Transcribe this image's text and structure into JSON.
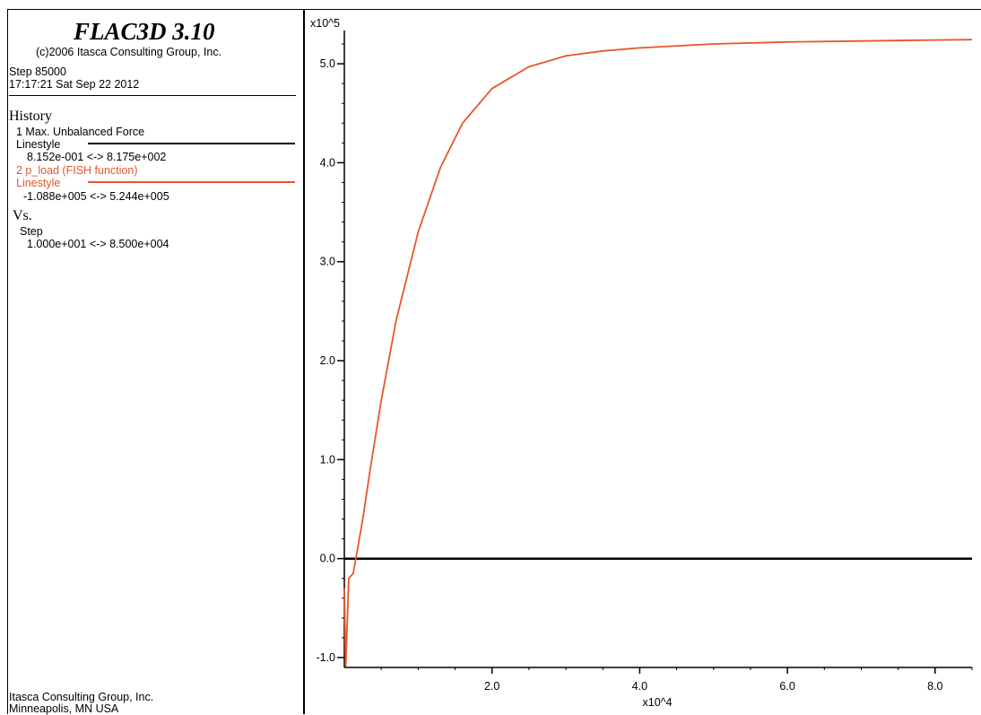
{
  "header": {
    "app_title": "FLAC3D 3.10",
    "copyright": "(c)2006 Itasca Consulting Group, Inc.",
    "step": "Step 85000",
    "datetime": "17:17:21 Sat Sep 22 2012"
  },
  "legend": {
    "history_title": "History",
    "items": [
      {
        "name": "1 Max. Unbalanced Force",
        "linestyle_label": "Linestyle",
        "range": "8.152e-001 <-> 8.175e+002",
        "color": "#000000"
      },
      {
        "name": "2 p_load (FISH function)",
        "linestyle_label": "Linestyle",
        "range": "-1.088e+005 <-> 5.244e+005",
        "color": "#e8562a"
      }
    ],
    "vs_title": "Vs.",
    "vs_name": "Step",
    "vs_range": "1.000e+001 <-> 8.500e+004"
  },
  "footer": {
    "line1": "Itasca Consulting Group, Inc.",
    "line2": "Minneapolis, MN  USA"
  },
  "chart_data": {
    "type": "line",
    "x_multiplier_label": "x10^4",
    "y_multiplier_label": "x10^5",
    "xlim": [
      0,
      8.5
    ],
    "ylim": [
      -1.1,
      5.3
    ],
    "x_ticks": [
      2,
      4,
      6,
      8
    ],
    "x_tick_labels": [
      "2.0",
      "4.0",
      "6.0",
      "8.0"
    ],
    "y_ticks": [
      -1,
      0,
      1,
      2,
      3,
      4,
      5
    ],
    "y_tick_labels": [
      "-1.0",
      "0.0",
      "1.0",
      "2.0",
      "3.0",
      "4.0",
      "5.0"
    ],
    "series": [
      {
        "name": "1 Max. Unbalanced Force",
        "color": "#000000",
        "x": [
          0,
          8.5
        ],
        "y": [
          0,
          0
        ]
      },
      {
        "name": "2 p_load (FISH function)",
        "color": "#e8562a",
        "x": [
          0,
          0.02,
          0.06,
          0.12,
          0.18,
          0.25,
          0.35,
          0.5,
          0.7,
          1.0,
          1.3,
          1.6,
          2.0,
          2.5,
          3.0,
          3.5,
          4.0,
          5.0,
          6.0,
          7.0,
          8.0,
          8.5
        ],
        "y": [
          -0.3,
          -1.088,
          -0.2,
          -0.15,
          0.1,
          0.4,
          0.9,
          1.6,
          2.4,
          3.3,
          3.95,
          4.4,
          4.75,
          4.97,
          5.08,
          5.13,
          5.16,
          5.2,
          5.22,
          5.23,
          5.24,
          5.244
        ]
      }
    ],
    "grid": false
  }
}
